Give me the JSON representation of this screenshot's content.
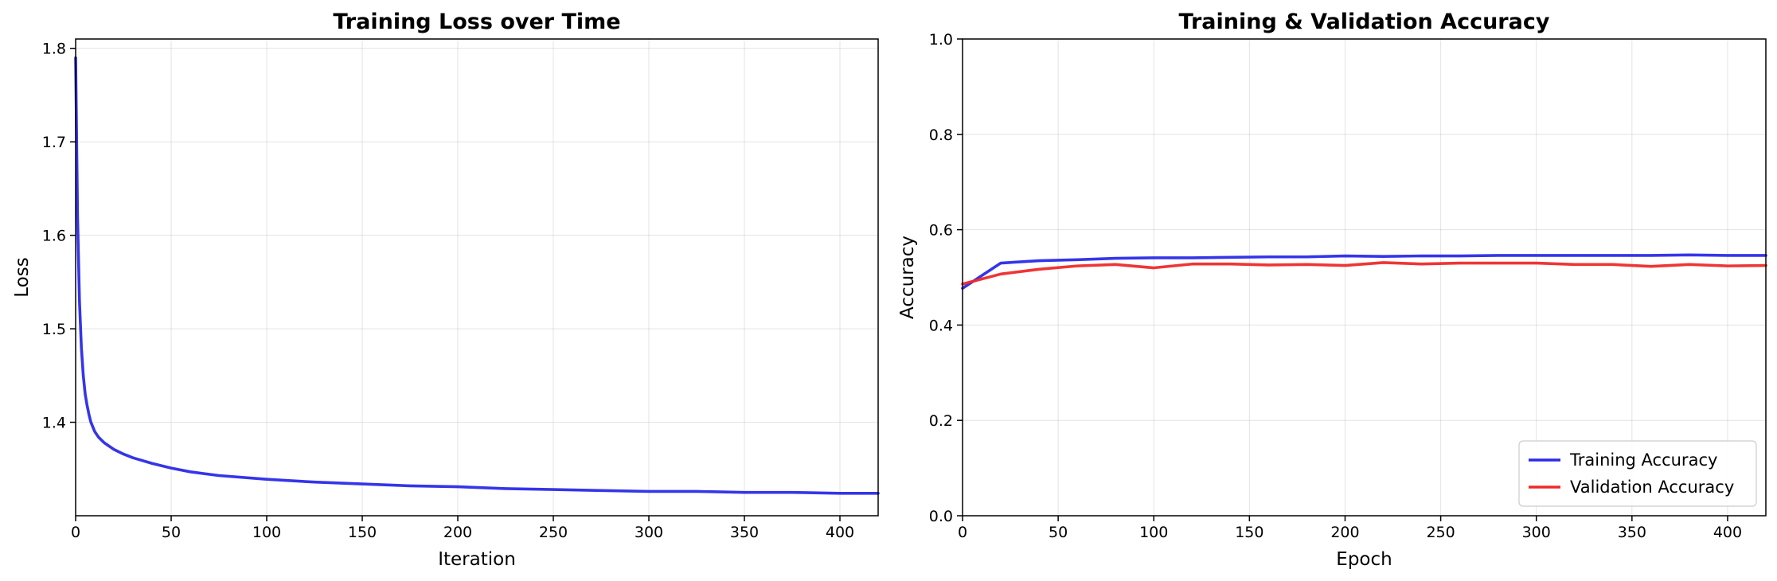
{
  "chart_data": [
    {
      "type": "line",
      "title": "Training Loss over Time",
      "xlabel": "Iteration",
      "ylabel": "Loss",
      "xlim": [
        0,
        420
      ],
      "ylim": [
        1.3,
        1.81
      ],
      "xticks": [
        0,
        50,
        100,
        150,
        200,
        250,
        300,
        350,
        400
      ],
      "yticks": [
        1.4,
        1.5,
        1.6,
        1.7,
        1.8
      ],
      "grid": true,
      "legend": null,
      "series": [
        {
          "color": "#2a2ae8",
          "x": [
            0,
            1,
            2,
            3,
            4,
            5,
            6,
            7,
            8,
            10,
            12,
            15,
            20,
            25,
            30,
            40,
            50,
            60,
            75,
            100,
            125,
            150,
            175,
            200,
            225,
            250,
            275,
            300,
            325,
            350,
            375,
            400,
            420
          ],
          "y": [
            1.79,
            1.62,
            1.53,
            1.48,
            1.45,
            1.43,
            1.418,
            1.408,
            1.4,
            1.39,
            1.384,
            1.378,
            1.371,
            1.366,
            1.362,
            1.356,
            1.351,
            1.347,
            1.343,
            1.339,
            1.336,
            1.334,
            1.332,
            1.331,
            1.329,
            1.328,
            1.327,
            1.326,
            1.326,
            1.325,
            1.325,
            1.324,
            1.324
          ]
        }
      ]
    },
    {
      "type": "line",
      "title": "Training & Validation Accuracy",
      "xlabel": "Epoch",
      "ylabel": "Accuracy",
      "xlim": [
        0,
        420
      ],
      "ylim": [
        0.0,
        1.0
      ],
      "xticks": [
        0,
        50,
        100,
        150,
        200,
        250,
        300,
        350,
        400
      ],
      "yticks": [
        0.0,
        0.2,
        0.4,
        0.6,
        0.8,
        1.0
      ],
      "grid": true,
      "legend": "bottom-right",
      "series": [
        {
          "name": "Training Accuracy",
          "color": "#2a2ae8",
          "x": [
            0,
            20,
            40,
            60,
            80,
            100,
            120,
            140,
            160,
            180,
            200,
            220,
            240,
            260,
            280,
            300,
            320,
            340,
            360,
            380,
            400,
            420
          ],
          "y": [
            0.477,
            0.53,
            0.535,
            0.537,
            0.54,
            0.541,
            0.541,
            0.542,
            0.543,
            0.543,
            0.545,
            0.544,
            0.545,
            0.545,
            0.546,
            0.546,
            0.546,
            0.546,
            0.546,
            0.547,
            0.546,
            0.546
          ]
        },
        {
          "name": "Validation Accuracy",
          "color": "#ee2a2a",
          "x": [
            0,
            20,
            40,
            60,
            80,
            100,
            120,
            140,
            160,
            180,
            200,
            220,
            240,
            260,
            280,
            300,
            320,
            340,
            360,
            380,
            400,
            420
          ],
          "y": [
            0.486,
            0.507,
            0.517,
            0.524,
            0.527,
            0.52,
            0.528,
            0.528,
            0.526,
            0.527,
            0.525,
            0.531,
            0.528,
            0.53,
            0.53,
            0.53,
            0.527,
            0.527,
            0.523,
            0.527,
            0.524,
            0.525
          ]
        }
      ]
    }
  ]
}
